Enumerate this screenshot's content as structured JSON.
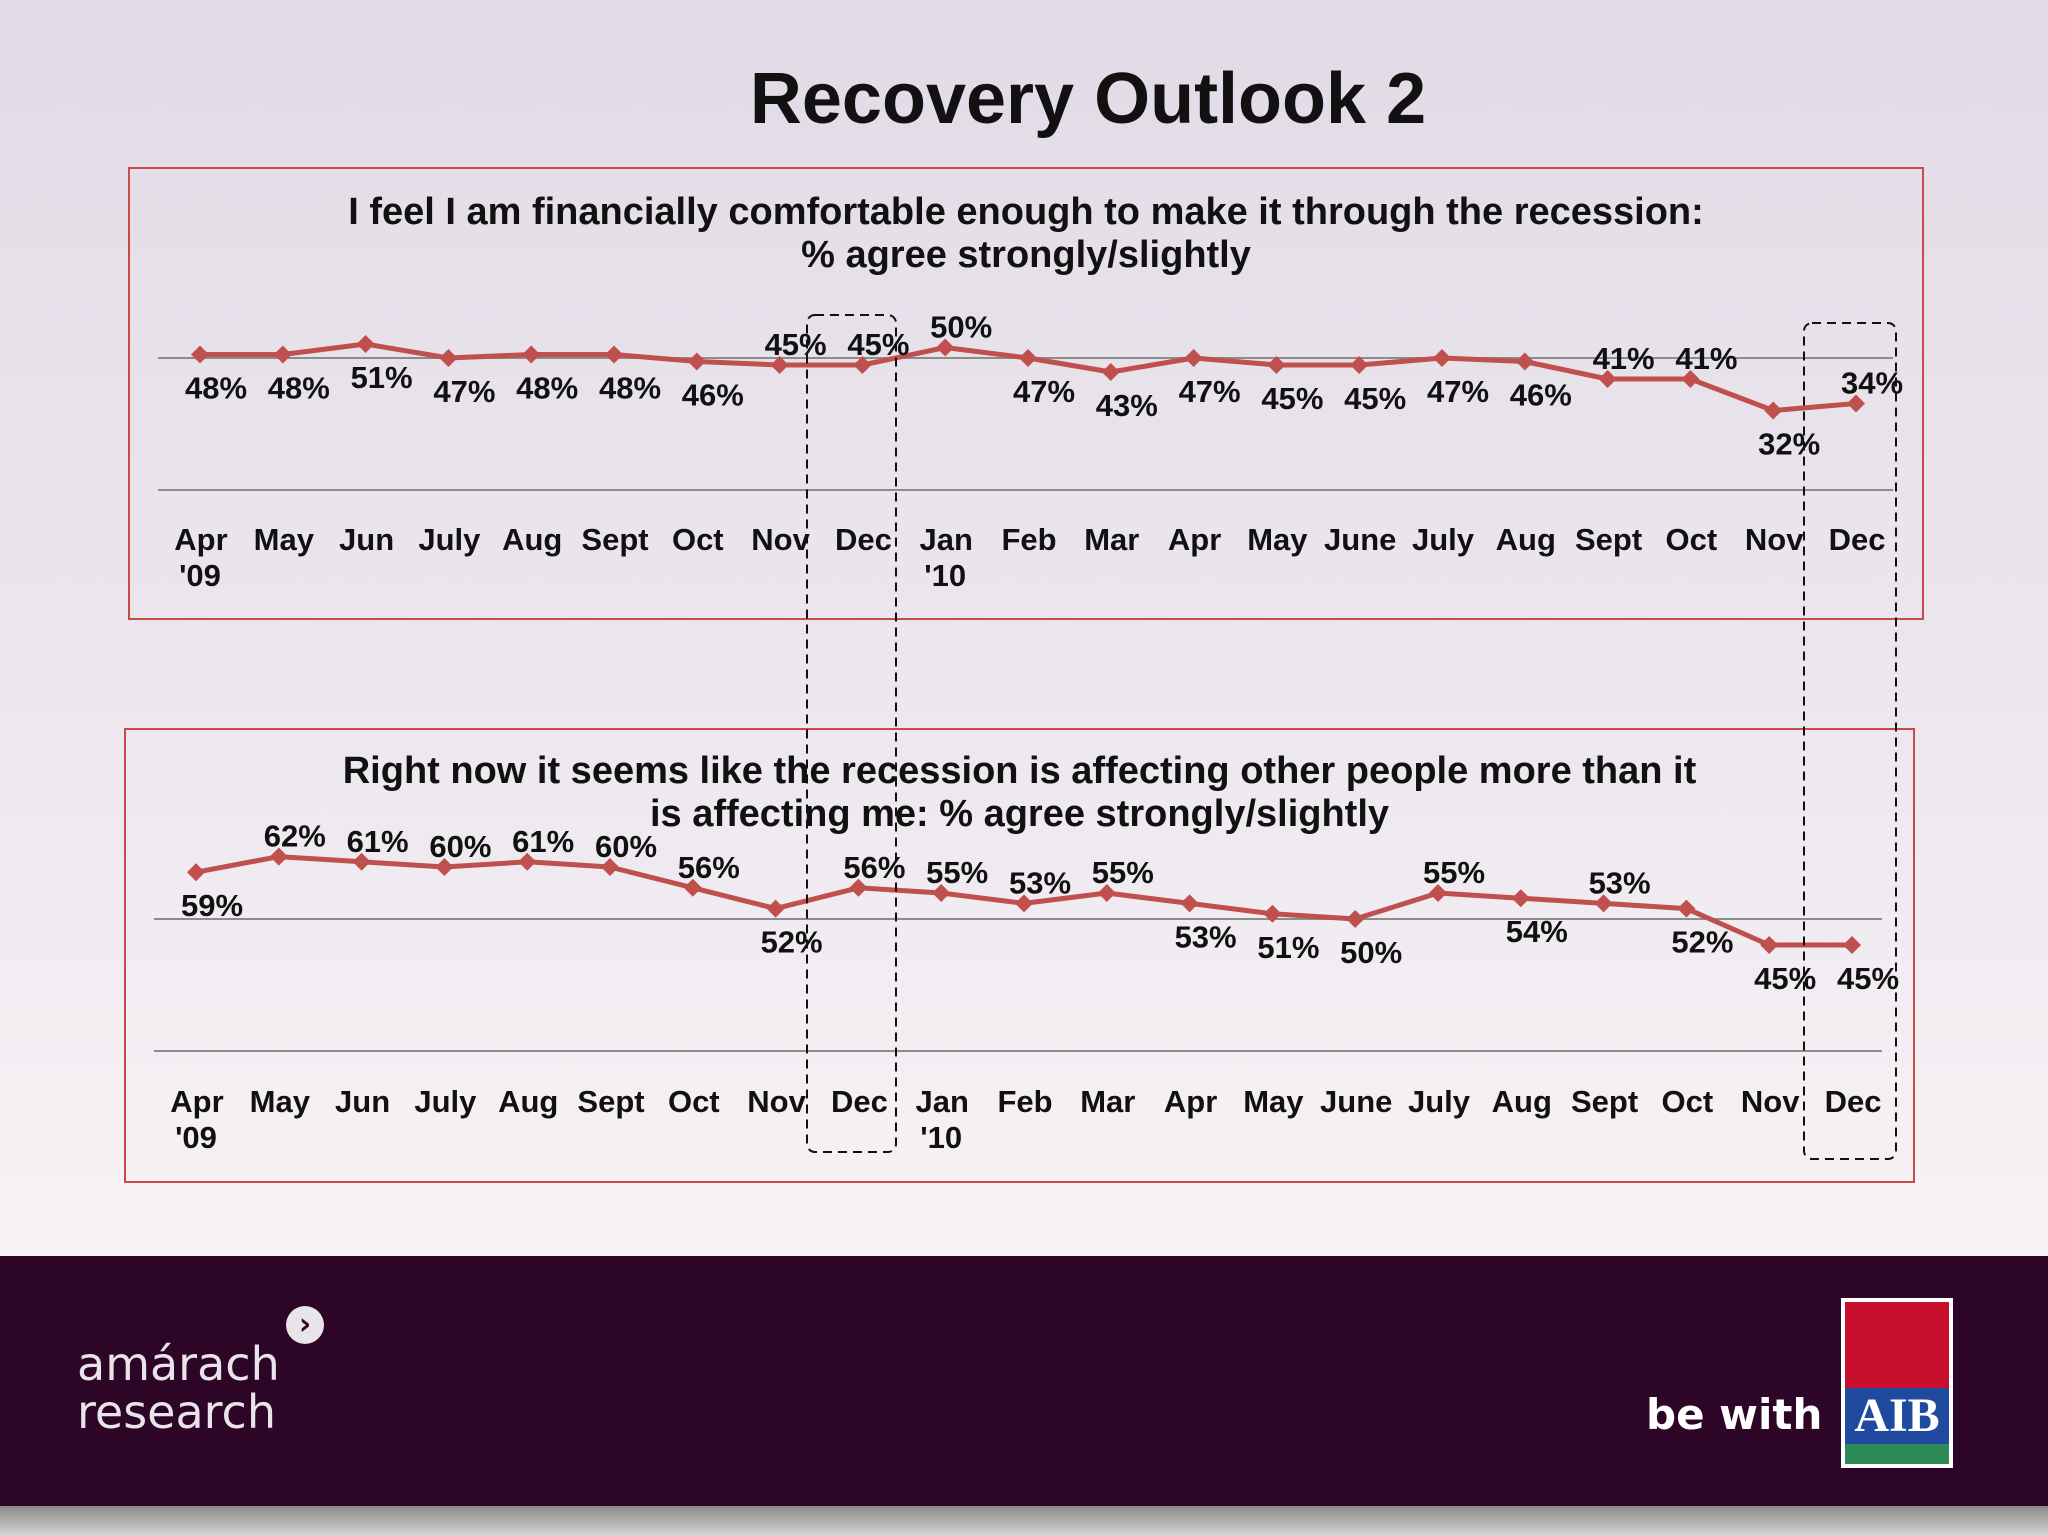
{
  "title": "Recovery Outlook 2",
  "colors": {
    "series": "#c0504d",
    "panel_border": "#c94a4a",
    "footer": "#2d0527"
  },
  "footer": {
    "brand": "amárach",
    "brand_line2": "research",
    "tagline": "be with",
    "logo_text": "AIB"
  },
  "chart_data": [
    {
      "type": "line",
      "title": "I feel I am financially comfortable enough to make it through the recession:",
      "subtitle": "% agree strongly/slightly",
      "categories": [
        "Apr '09",
        "May",
        "Jun",
        "July",
        "Aug",
        "Sept",
        "Oct",
        "Nov",
        "Dec",
        "Jan '10",
        "Feb",
        "Mar",
        "Apr",
        "May",
        "June",
        "July",
        "Aug",
        "Sept",
        "Oct",
        "Nov",
        "Dec"
      ],
      "tick_lines": [
        [
          "Apr",
          "'09"
        ],
        [
          "May"
        ],
        [
          "Jun"
        ],
        [
          "July"
        ],
        [
          "Aug"
        ],
        [
          "Sept"
        ],
        [
          "Oct"
        ],
        [
          "Nov"
        ],
        [
          "Dec"
        ],
        [
          "Jan",
          "'10"
        ],
        [
          "Feb"
        ],
        [
          "Mar"
        ],
        [
          "Apr"
        ],
        [
          "May"
        ],
        [
          "June"
        ],
        [
          "July"
        ],
        [
          "Aug"
        ],
        [
          "Sept"
        ],
        [
          "Oct"
        ],
        [
          "Nov"
        ],
        [
          "Dec"
        ]
      ],
      "values": [
        48,
        48,
        51,
        47,
        48,
        48,
        46,
        45,
        45,
        50,
        47,
        43,
        47,
        45,
        45,
        47,
        46,
        41,
        41,
        32,
        34
      ],
      "labels": [
        "48%",
        "48%",
        "51%",
        "47%",
        "48%",
        "48%",
        "46%",
        "45%",
        "45%",
        "50%",
        "47%",
        "43%",
        "47%",
        "45%",
        "45%",
        "47%",
        "46%",
        "41%",
        "41%",
        "32%",
        "34%"
      ],
      "highlighted": [
        "Dec",
        "Dec"
      ],
      "legend": "none",
      "grid": true
    },
    {
      "type": "line",
      "title": "Right now it seems like the recession is affecting other people more than it",
      "subtitle": "is affecting me: % agree strongly/slightly",
      "categories": [
        "Apr '09",
        "May",
        "Jun",
        "July",
        "Aug",
        "Sept",
        "Oct",
        "Nov",
        "Dec",
        "Jan '10",
        "Feb",
        "Mar",
        "Apr",
        "May",
        "June",
        "July",
        "Aug",
        "Sept",
        "Oct",
        "Nov",
        "Dec"
      ],
      "tick_lines": [
        [
          "Apr",
          "'09"
        ],
        [
          "May"
        ],
        [
          "Jun"
        ],
        [
          "July"
        ],
        [
          "Aug"
        ],
        [
          "Sept"
        ],
        [
          "Oct"
        ],
        [
          "Nov"
        ],
        [
          "Dec"
        ],
        [
          "Jan",
          "'10"
        ],
        [
          "Feb"
        ],
        [
          "Mar"
        ],
        [
          "Apr"
        ],
        [
          "May"
        ],
        [
          "June"
        ],
        [
          "July"
        ],
        [
          "Aug"
        ],
        [
          "Sept"
        ],
        [
          "Oct"
        ],
        [
          "Nov"
        ],
        [
          "Dec"
        ]
      ],
      "values": [
        59,
        62,
        61,
        60,
        61,
        60,
        56,
        52,
        56,
        55,
        53,
        55,
        53,
        51,
        50,
        55,
        54,
        53,
        52,
        45,
        45
      ],
      "labels": [
        "59%",
        "62%",
        "61%",
        "60%",
        "61%",
        "60%",
        "56%",
        "52%",
        "56%",
        "55%",
        "53%",
        "55%",
        "53%",
        "51%",
        "50%",
        "55%",
        "54%",
        "53%",
        "52%",
        "45%",
        "45%"
      ],
      "highlighted": [
        "Dec",
        "Dec"
      ],
      "legend": "none",
      "grid": true
    }
  ]
}
